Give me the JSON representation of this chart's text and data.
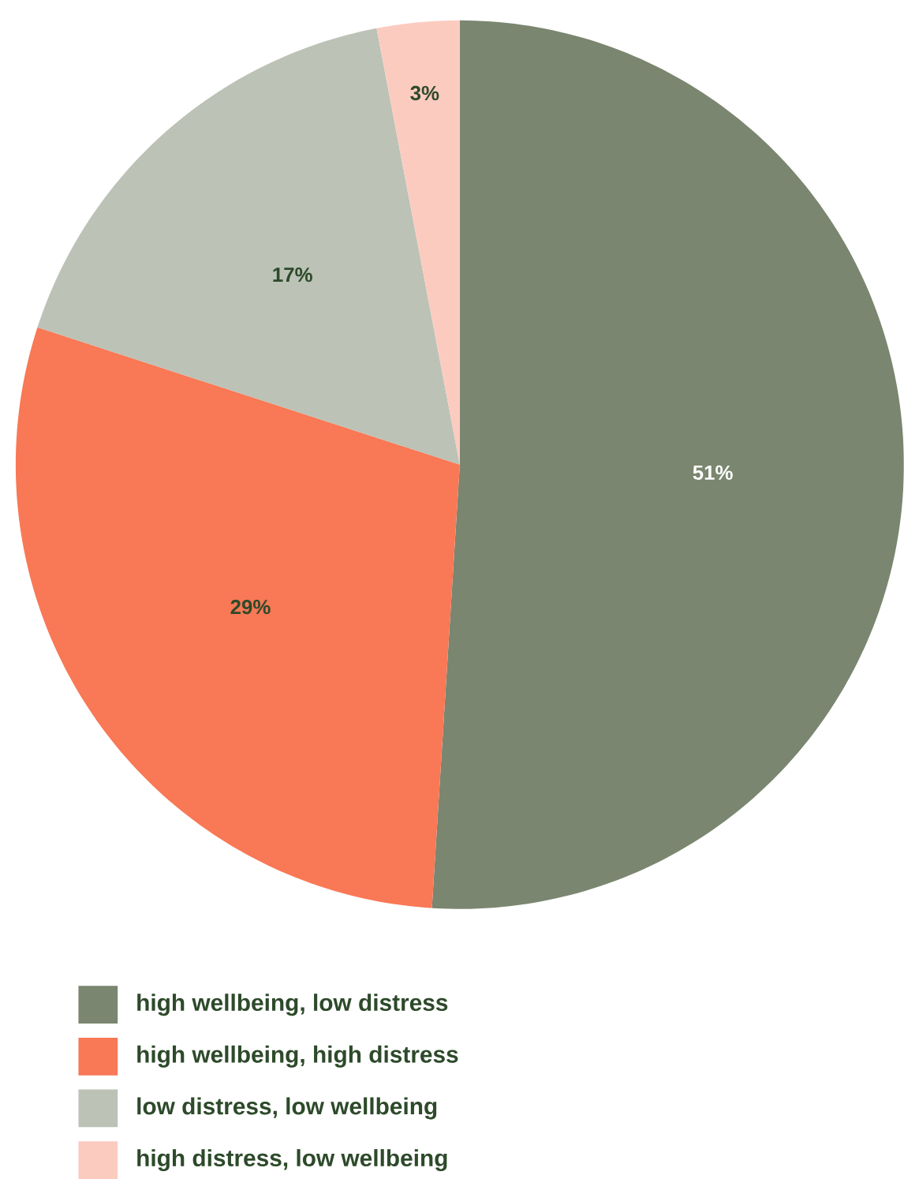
{
  "chart_data": {
    "type": "pie",
    "categories": [
      "high wellbeing, low distress",
      "high wellbeing, high distress",
      "low distress, low wellbeing",
      "high distress, low wellbeing"
    ],
    "values": [
      51,
      29,
      17,
      3
    ],
    "value_labels": [
      "51%",
      "29%",
      "17%",
      "3%"
    ],
    "colors": [
      "#7a866f",
      "#f97855",
      "#bcc2b6",
      "#fccbc0"
    ],
    "legend": "bottom"
  }
}
